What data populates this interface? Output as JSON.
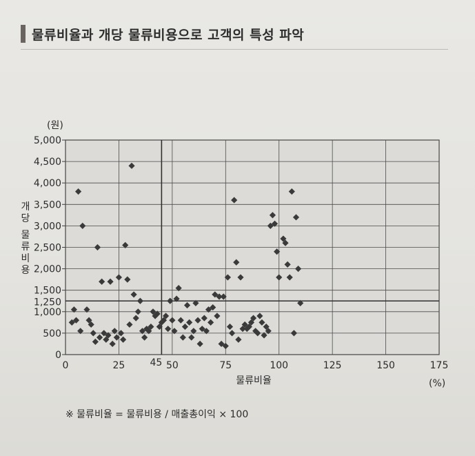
{
  "page": {
    "title": "물류비율과 개당 물류비용으로 고객의 특성 파악",
    "footnote": "※ 물류비율 = 물류비용 / 매출총이익 × 100"
  },
  "chart_data": {
    "type": "scatter",
    "title": "",
    "xlabel": "물류비율",
    "ylabel": "개당 물류비용",
    "x_unit": "(%)",
    "y_unit": "(원)",
    "xlim": [
      0,
      175
    ],
    "ylim": [
      0,
      5000
    ],
    "x_ticks": [
      "0",
      "25",
      "50",
      "75",
      "100",
      "125",
      "150",
      "175"
    ],
    "y_ticks": [
      "0",
      "500",
      "1,000",
      "1,500",
      "2,000",
      "2,500",
      "3,000",
      "3,500",
      "4,000",
      "4,500",
      "5,000"
    ],
    "reference_lines": {
      "x": 45,
      "x_label": "45",
      "y": 1250,
      "y_label": "1,250"
    },
    "grid": true,
    "series": [
      {
        "color": "#3a3a3a",
        "points": [
          [
            3,
            750
          ],
          [
            4,
            1050
          ],
          [
            5,
            800
          ],
          [
            6,
            3800
          ],
          [
            7,
            550
          ],
          [
            8,
            3000
          ],
          [
            10,
            1050
          ],
          [
            11,
            800
          ],
          [
            12,
            700
          ],
          [
            13,
            500
          ],
          [
            14,
            300
          ],
          [
            15,
            2500
          ],
          [
            16,
            400
          ],
          [
            17,
            1700
          ],
          [
            18,
            500
          ],
          [
            19,
            350
          ],
          [
            20,
            450
          ],
          [
            21,
            1700
          ],
          [
            22,
            250
          ],
          [
            23,
            550
          ],
          [
            24,
            400
          ],
          [
            25,
            1800
          ],
          [
            26,
            500
          ],
          [
            27,
            350
          ],
          [
            28,
            2550
          ],
          [
            29,
            1750
          ],
          [
            30,
            700
          ],
          [
            31,
            4400
          ],
          [
            32,
            1400
          ],
          [
            33,
            850
          ],
          [
            34,
            1000
          ],
          [
            35,
            1250
          ],
          [
            36,
            550
          ],
          [
            37,
            400
          ],
          [
            38,
            600
          ],
          [
            39,
            550
          ],
          [
            40,
            650
          ],
          [
            41,
            1000
          ],
          [
            42,
            900
          ],
          [
            43,
            950
          ],
          [
            44,
            650
          ],
          [
            45,
            750
          ],
          [
            46,
            800
          ],
          [
            47,
            900
          ],
          [
            48,
            600
          ],
          [
            49,
            1250
          ],
          [
            50,
            800
          ],
          [
            51,
            550
          ],
          [
            52,
            1300
          ],
          [
            53,
            1550
          ],
          [
            54,
            800
          ],
          [
            55,
            400
          ],
          [
            56,
            650
          ],
          [
            57,
            1150
          ],
          [
            58,
            750
          ],
          [
            59,
            400
          ],
          [
            60,
            550
          ],
          [
            61,
            1200
          ],
          [
            62,
            800
          ],
          [
            63,
            250
          ],
          [
            64,
            600
          ],
          [
            65,
            850
          ],
          [
            66,
            550
          ],
          [
            67,
            1050
          ],
          [
            68,
            750
          ],
          [
            69,
            1100
          ],
          [
            70,
            1400
          ],
          [
            71,
            900
          ],
          [
            72,
            1350
          ],
          [
            73,
            250
          ],
          [
            74,
            1350
          ],
          [
            75,
            200
          ],
          [
            76,
            1800
          ],
          [
            77,
            650
          ],
          [
            78,
            500
          ],
          [
            79,
            3600
          ],
          [
            80,
            2150
          ],
          [
            81,
            350
          ],
          [
            82,
            1800
          ],
          [
            83,
            600
          ],
          [
            84,
            700
          ],
          [
            85,
            600
          ],
          [
            86,
            650
          ],
          [
            87,
            750
          ],
          [
            88,
            850
          ],
          [
            89,
            550
          ],
          [
            90,
            500
          ],
          [
            91,
            900
          ],
          [
            92,
            750
          ],
          [
            93,
            450
          ],
          [
            94,
            650
          ],
          [
            95,
            550
          ],
          [
            96,
            3000
          ],
          [
            97,
            3250
          ],
          [
            98,
            3050
          ],
          [
            99,
            2400
          ],
          [
            100,
            1800
          ],
          [
            102,
            2700
          ],
          [
            103,
            2600
          ],
          [
            104,
            2100
          ],
          [
            105,
            1800
          ],
          [
            106,
            3800
          ],
          [
            107,
            500
          ],
          [
            108,
            3200
          ],
          [
            109,
            2000
          ],
          [
            110,
            1200
          ]
        ]
      }
    ]
  }
}
